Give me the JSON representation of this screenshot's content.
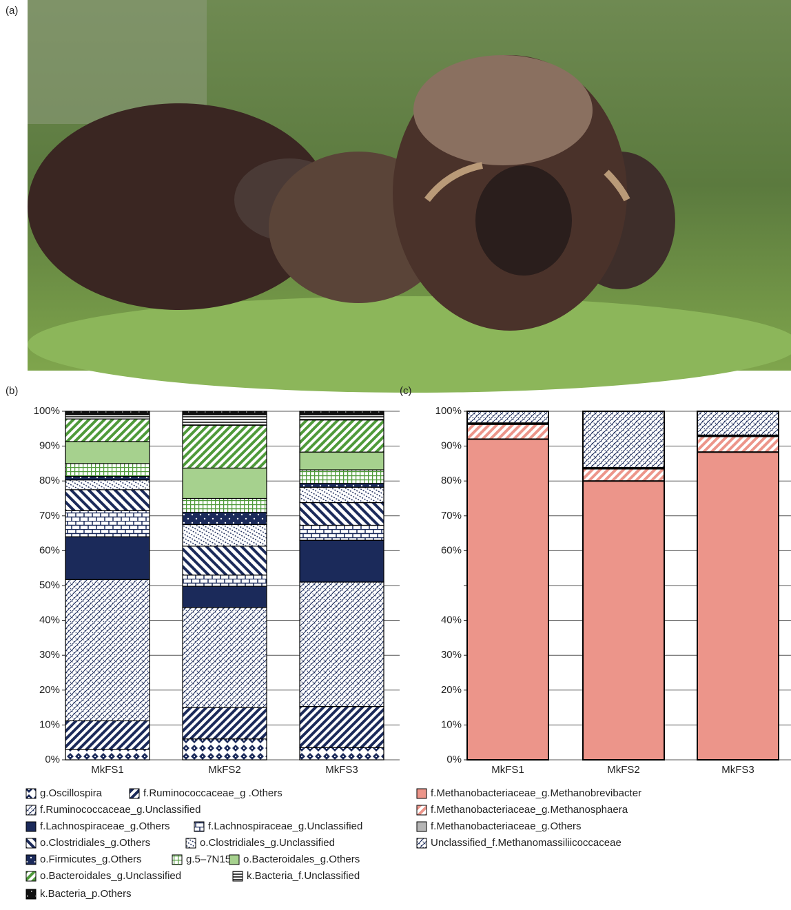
{
  "photo_label": "(a)",
  "chart_data": [
    {
      "type": "stacked-bar",
      "panel_label": "(b)",
      "categories": [
        "MkFS1",
        "MkFS2",
        "MkFS3"
      ],
      "ylim": [
        0,
        100
      ],
      "yticks": [
        {
          "value": 0,
          "label": "0%"
        },
        {
          "value": 10,
          "label": "10%"
        },
        {
          "value": 20,
          "label": "20%"
        },
        {
          "value": 30,
          "label": "30%"
        },
        {
          "value": 40,
          "label": "40%"
        },
        {
          "value": 50,
          "label": "50%"
        },
        {
          "value": 60,
          "label": "60%"
        },
        {
          "value": 70,
          "label": "70%"
        },
        {
          "value": 80,
          "label": "80%"
        },
        {
          "value": 90,
          "label": "90%"
        },
        {
          "value": 100,
          "label": "100%"
        }
      ],
      "grid": true,
      "series": [
        {
          "name": "g.Oscillospira",
          "color": "#1b2a5a",
          "pattern": "diamond",
          "values": [
            3,
            6,
            3.5
          ]
        },
        {
          "name": "f.Ruminococcaceae_g .Others",
          "color": "#1b2a5a",
          "pattern": "diag",
          "values": [
            8.2,
            9,
            11.8
          ]
        },
        {
          "name": "f.Ruminococcaceae_g.Unclassified",
          "color": "#1b2a5a",
          "pattern": "lattice",
          "values": [
            40.5,
            28.7,
            35.7
          ]
        },
        {
          "name": "f.Lachnospiraceae_g.Others",
          "color": "#1b2a5a",
          "pattern": "solid",
          "values": [
            12.3,
            6.1,
            12
          ]
        },
        {
          "name": "f.Lachnospiraceae_g.Unclassified",
          "color": "#1b2a5a",
          "pattern": "bricks",
          "values": [
            7.5,
            3.2,
            4.3
          ]
        },
        {
          "name": "o.Clostridiales_g.Others",
          "color": "#1b2a5a",
          "pattern": "anti",
          "values": [
            6,
            8.3,
            6.5
          ]
        },
        {
          "name": "o.Clostridiales_g.Unclassified",
          "color": "#1b2a5a",
          "pattern": "dashdiag",
          "values": [
            2.8,
            6.2,
            4.4
          ]
        },
        {
          "name": "o.Firmicutes_g.Others",
          "color": "#1b2a5a",
          "pattern": "dots",
          "values": [
            1,
            3.5,
            1.1
          ]
        },
        {
          "name": "g.5–7N15",
          "color": "#4f9a3a",
          "pattern": "grid",
          "values": [
            3.7,
            4,
            3.9
          ]
        },
        {
          "name": "o.Bacteroidales_g.Others",
          "color": "#a6d18e",
          "pattern": "solid",
          "values": [
            6.3,
            8.7,
            5.1
          ]
        },
        {
          "name": "o.Bacteroidales_g.Unclassified",
          "color": "#4f9a3a",
          "pattern": "diag",
          "values": [
            6.5,
            12.3,
            9.2
          ]
        },
        {
          "name": "k.Bacteria_f.Unclassified",
          "color": "#111111",
          "pattern": "hlines",
          "values": [
            1.2,
            3,
            1.5
          ]
        },
        {
          "name": "k.Bacteria_p.Others",
          "color": "#111111",
          "pattern": "speckle",
          "values": [
            1,
            1,
            1
          ]
        }
      ]
    },
    {
      "type": "stacked-bar",
      "panel_label": "(c)",
      "categories": [
        "MkFS1",
        "MkFS2",
        "MkFS3"
      ],
      "ylim": [
        0,
        100
      ],
      "yticks": [
        {
          "value": 0,
          "label": "0%"
        },
        {
          "value": 10,
          "label": "10%"
        },
        {
          "value": 20,
          "label": "20%"
        },
        {
          "value": 30,
          "label": "30%"
        },
        {
          "value": 40,
          "label": "40%"
        },
        {
          "value": 50,
          "label": null
        },
        {
          "value": 60,
          "label": "60%"
        },
        {
          "value": 70,
          "label": "70%"
        },
        {
          "value": 80,
          "label": "80%"
        },
        {
          "value": 90,
          "label": "90%"
        },
        {
          "value": 100,
          "label": "100%"
        }
      ],
      "grid": true,
      "series": [
        {
          "name": "f.Methanobacteriaceae_g.Methanobrevibacter",
          "color": "#ec958a",
          "pattern": "solid",
          "values": [
            92,
            80,
            88.3
          ]
        },
        {
          "name": "f.Methanobacteriaceae_g.Methanosphaera",
          "color": "#ec958a",
          "pattern": "diag",
          "values": [
            4.3,
            3.5,
            4.5
          ]
        },
        {
          "name": "f.Methanobacteriaceae_g.Others",
          "color": "#b5b5b5",
          "pattern": "solid",
          "values": [
            0.3,
            0.3,
            0.3
          ]
        },
        {
          "name": "Unclassified_f.Methanomassiliicoccaceae",
          "color": "#1b2a5a",
          "pattern": "lattice",
          "values": [
            3.4,
            16.2,
            6.9
          ]
        }
      ]
    }
  ]
}
